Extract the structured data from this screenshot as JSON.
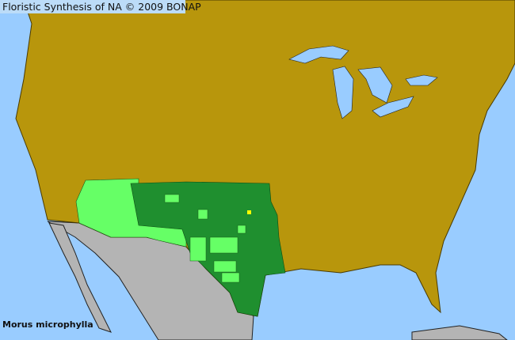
{
  "title": "Floristic Synthesis of NA © 2009 BONAP",
  "species": "Morus microphylla",
  "colors": {
    "ocean": "#99ccff",
    "land_no_record": "#b8960c",
    "outside_range": "#b4b4b4",
    "county_present": "#1f8f2f",
    "native_state": "#66ff66",
    "rare": "#ffff00",
    "county_lines": "#4a3a00"
  }
}
